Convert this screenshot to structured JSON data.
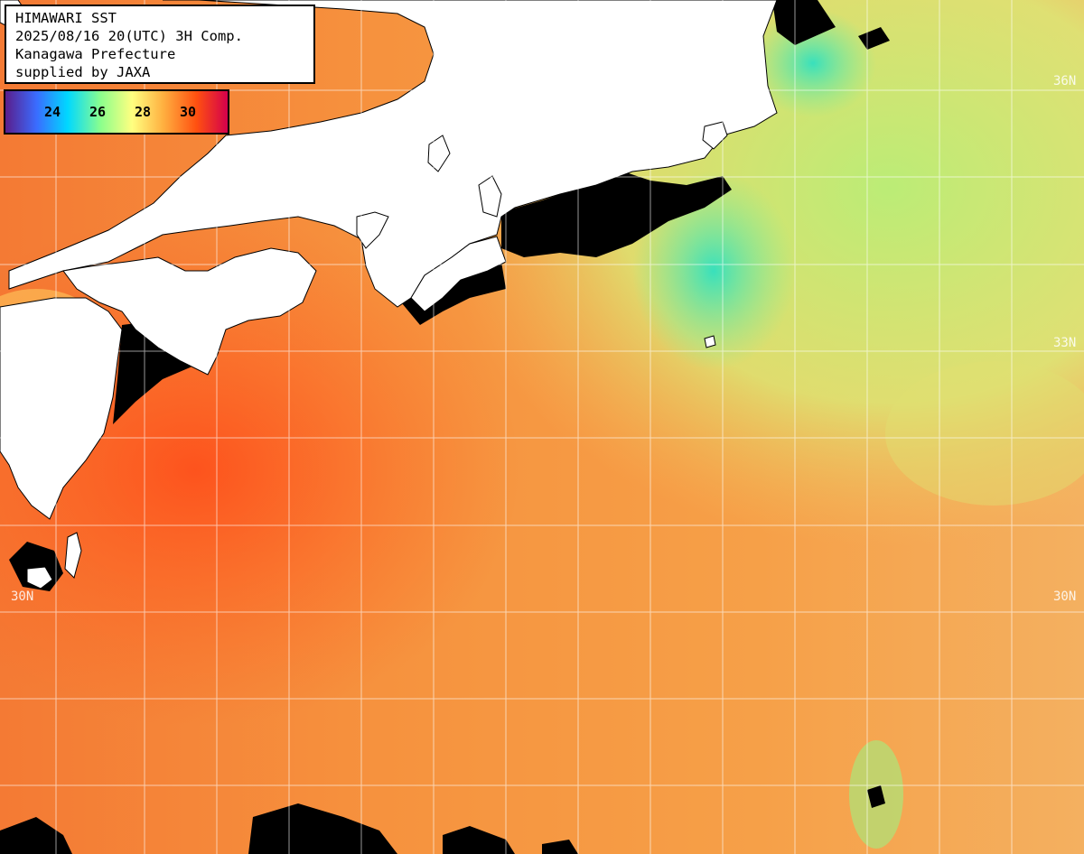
{
  "header": {
    "lines": [
      "HIMAWARI SST",
      "2025/08/16 20(UTC) 3H Comp.",
      "Kanagawa Prefecture",
      "supplied by JAXA"
    ]
  },
  "legend": {
    "labels": [
      "24",
      "26",
      "28",
      "30"
    ],
    "colors": [
      "#5a1e8c",
      "#3a6cff",
      "#00d8ff",
      "#8cff8c",
      "#ffff80",
      "#ffb040",
      "#ff5010",
      "#d4004c"
    ]
  },
  "grid_labels": {
    "lat_36": "36N",
    "lat_33": "33N",
    "lat_30_left": "30N",
    "lat_30_right": "30N"
  },
  "colors": {
    "land": "#ffffff",
    "no_data": "#000000",
    "grid": "#ffffff",
    "warm_sea": "#f08a3c",
    "hot_sea": "#ff5a1e",
    "cool_sea": "#c8f080",
    "cold_sea": "#50e8b8"
  }
}
